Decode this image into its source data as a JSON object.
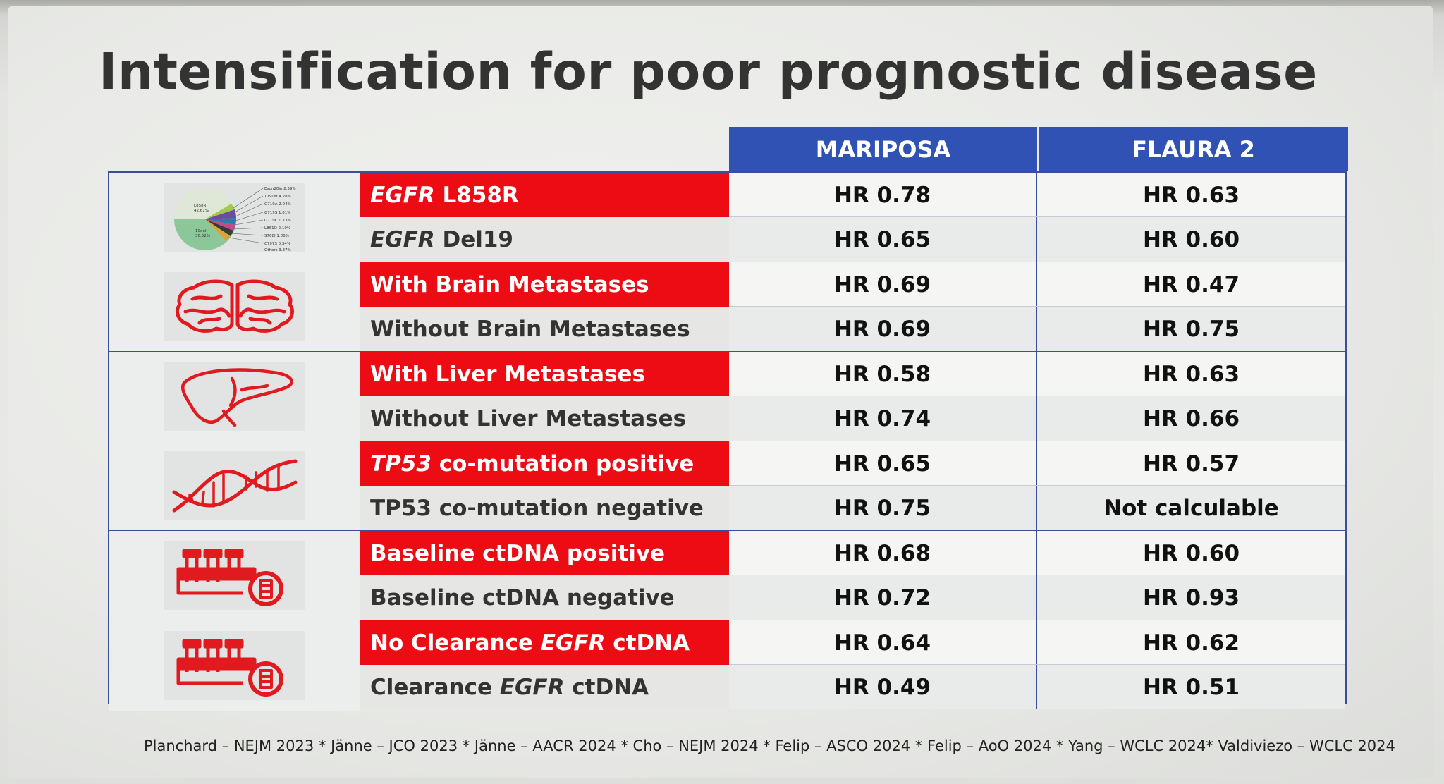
{
  "title": "Intensification for poor prognostic disease",
  "columns": [
    "MARIPOSA",
    "FLAURA 2"
  ],
  "groups": [
    {
      "icon": "pie-chart-icon",
      "pie_labels": {
        "major_1": "L858R",
        "major_1_pct": "42.61%",
        "major_2": "19del",
        "major_2_pct": "36.52%",
        "minor": [
          "Exon20in 2.39%",
          "T790M 4.28%",
          "G719A 2.04%",
          "G719S 1.01%",
          "G719C 0.73%",
          "L861Q 2.19%",
          "S768I 1.86%",
          "C797S 0.34%",
          "Others 3.37%"
        ]
      },
      "rows": [
        {
          "italic": "EGFR",
          "label": " L858R",
          "red": true,
          "mariposa": "HR 0.78",
          "flaura": "HR 0.63"
        },
        {
          "italic": "EGFR",
          "label": " Del19",
          "red": false,
          "mariposa": "HR 0.65",
          "flaura": "HR 0.60"
        }
      ]
    },
    {
      "icon": "brain-icon",
      "rows": [
        {
          "italic": "",
          "label": "With Brain Metastases",
          "red": true,
          "mariposa": "HR 0.69",
          "flaura": "HR 0.47"
        },
        {
          "italic": "",
          "label": "Without Brain Metastases",
          "red": false,
          "mariposa": "HR 0.69",
          "flaura": "HR 0.75"
        }
      ]
    },
    {
      "icon": "liver-icon",
      "rows": [
        {
          "italic": "",
          "label": "With Liver Metastases",
          "red": true,
          "mariposa": "HR 0.58",
          "flaura": "HR 0.63"
        },
        {
          "italic": "",
          "label": "Without Liver Metastases",
          "red": false,
          "mariposa": "HR 0.74",
          "flaura": "HR 0.66"
        }
      ]
    },
    {
      "icon": "dna-icon",
      "rows": [
        {
          "italic": "TP53",
          "label": " co-mutation positive",
          "red": true,
          "mariposa": "HR 0.65",
          "flaura": "HR 0.57"
        },
        {
          "italic": "",
          "label": "TP53 co-mutation negative",
          "red": false,
          "mariposa": "HR 0.75",
          "flaura": "Not calculable"
        }
      ]
    },
    {
      "icon": "test-tubes-icon",
      "rows": [
        {
          "italic": "",
          "label": "Baseline ctDNA positive",
          "red": true,
          "mariposa": "HR 0.68",
          "flaura": "HR 0.60"
        },
        {
          "italic": "",
          "label": "Baseline ctDNA negative",
          "red": false,
          "mariposa": "HR 0.72",
          "flaura": "HR 0.93"
        }
      ]
    },
    {
      "icon": "test-tubes-icon",
      "rows": [
        {
          "italic": "",
          "label": "No Clearance ",
          "italic2": "EGFR",
          "label2": " ctDNA",
          "red": true,
          "mariposa": "HR 0.64",
          "flaura": "HR 0.62"
        },
        {
          "italic": "",
          "label": "Clearance ",
          "italic2": "EGFR",
          "label2": " ctDNA",
          "red": false,
          "mariposa": "HR 0.49",
          "flaura": "HR 0.51"
        }
      ]
    }
  ],
  "footer": "Planchard – NEJM 2023 * Jänne – JCO 2023 * Jänne – AACR 2024 * Cho – NEJM 2024 * Felip – ASCO 2024 *  Felip – AoO 2024 * Yang – WCLC 2024* Valdiviezo – WCLC 2024",
  "colors": {
    "header_blue": "#2f52b4",
    "highlight_red": "#ee0c14",
    "icon_red": "#e01a1f"
  }
}
